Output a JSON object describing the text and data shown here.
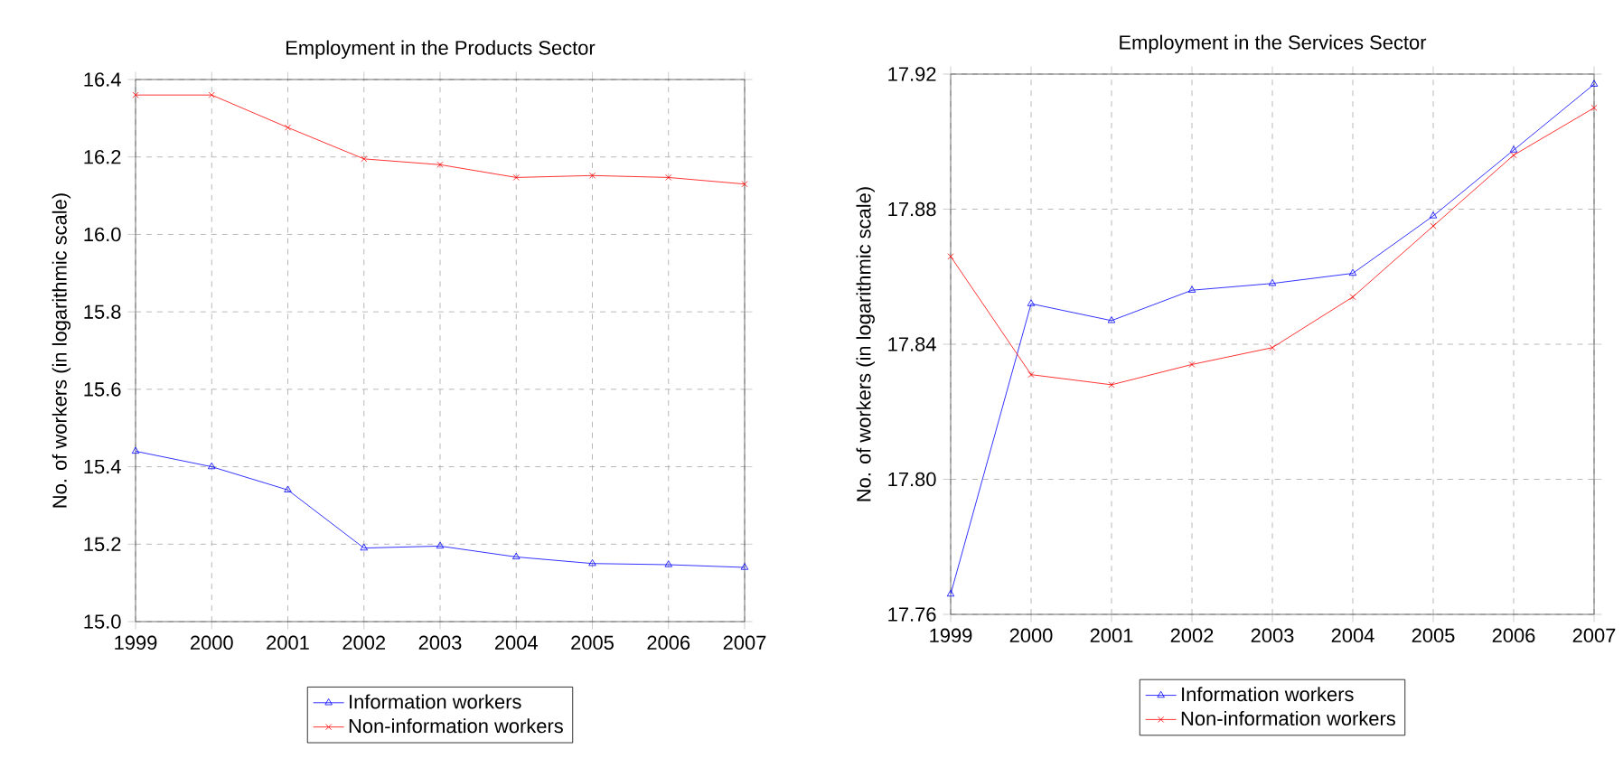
{
  "chart_data": [
    {
      "type": "line",
      "title": "Employment in the Products Sector",
      "ylabel": "No. of workers (in logarithmic scale)",
      "x": [
        1999,
        2000,
        2001,
        2002,
        2003,
        2004,
        2005,
        2006,
        2007
      ],
      "series": [
        {
          "name": "Information workers",
          "color": "#0000ff",
          "marker": "triangle",
          "values": [
            15.44,
            15.4,
            15.34,
            15.19,
            15.195,
            15.167,
            15.15,
            15.147,
            15.14
          ]
        },
        {
          "name": "Non-information workers",
          "color": "#ff0000",
          "marker": "cross",
          "values": [
            16.36,
            16.36,
            16.276,
            16.195,
            16.18,
            16.147,
            16.152,
            16.147,
            16.13
          ]
        }
      ],
      "xlim": [
        1999,
        2007
      ],
      "xticks": [
        1999,
        2000,
        2001,
        2002,
        2003,
        2004,
        2005,
        2006,
        2007
      ],
      "ylim": [
        15.0,
        16.4
      ],
      "yticks": [
        {
          "value": 15.0,
          "label": "15.0"
        },
        15.2,
        15.4,
        15.6,
        15.8,
        {
          "value": 16.0,
          "label": "16.0"
        },
        16.2,
        16.4
      ],
      "grid": true,
      "legend": "bottom"
    },
    {
      "type": "line",
      "title": "Employment in the Services Sector",
      "ylabel": "No. of workers (in logarithmic scale)",
      "x": [
        1999,
        2000,
        2001,
        2002,
        2003,
        2004,
        2005,
        2006,
        2007
      ],
      "series": [
        {
          "name": "Information workers",
          "color": "#0000ff",
          "marker": "triangle",
          "values": [
            17.766,
            17.852,
            17.847,
            17.856,
            17.858,
            17.861,
            17.878,
            17.8975,
            17.917
          ]
        },
        {
          "name": "Non-information workers",
          "color": "#ff0000",
          "marker": "cross",
          "values": [
            17.866,
            17.831,
            17.828,
            17.834,
            17.839,
            17.854,
            17.875,
            17.896,
            17.91
          ]
        }
      ],
      "xlim": [
        1999,
        2007
      ],
      "xticks": [
        1999,
        2000,
        2001,
        2002,
        2003,
        2004,
        2005,
        2006,
        2007
      ],
      "ylim": [
        17.76,
        17.92
      ],
      "yticks": [
        17.76,
        {
          "value": 17.8,
          "label": "17.80"
        },
        17.84,
        17.88,
        17.92
      ],
      "grid": true,
      "legend": "bottom"
    }
  ]
}
